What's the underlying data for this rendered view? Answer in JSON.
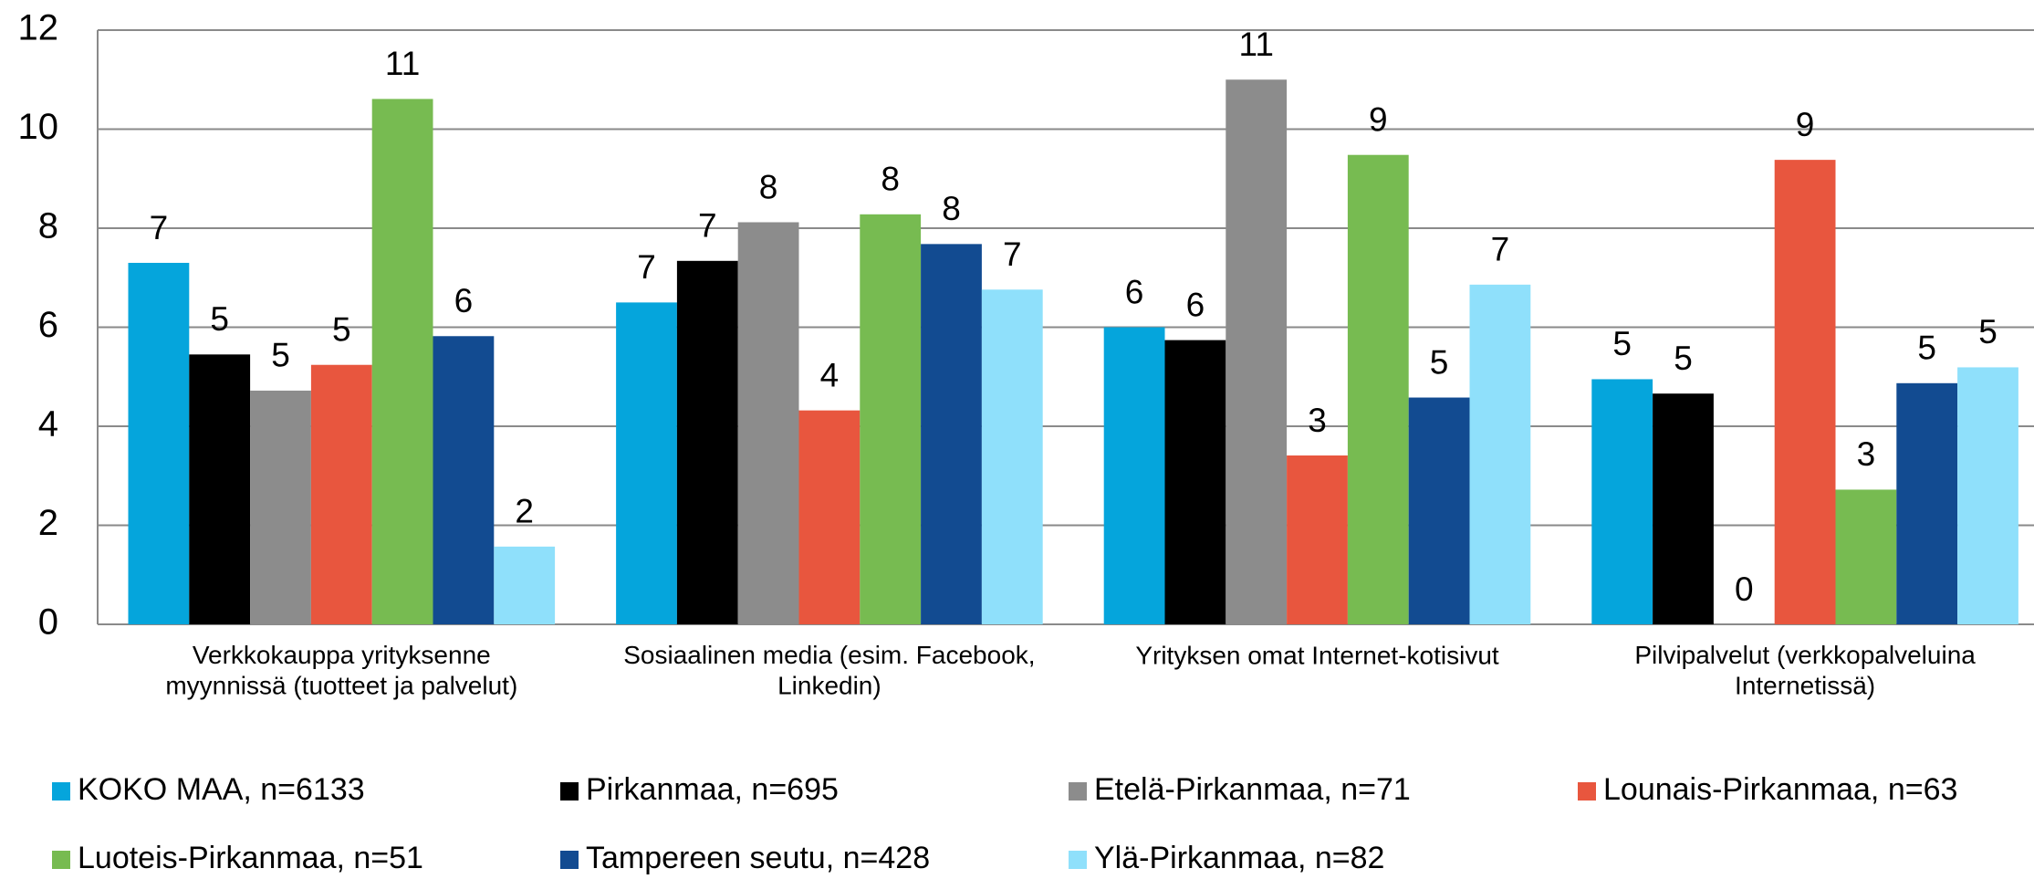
{
  "chart_data": {
    "type": "bar",
    "categories": [
      "Verkkokauppa yrityksenne\nmyynnissä (tuotteet ja palvelut)",
      "Sosiaalinen media (esim. Facebook,\nLinkedin)",
      "Yrityksen omat Internet-kotisivut",
      "Pilvipalvelut  (verkkopalveluina\nInternetissä)"
    ],
    "series": [
      {
        "name": "KOKO MAA, n=6133",
        "color": "#05a5dc",
        "values": [
          7.3,
          6.5,
          6.0,
          4.95
        ],
        "value_labels": [
          "7",
          "7",
          "6",
          "5"
        ]
      },
      {
        "name": "Pirkanmaa, n=695",
        "color": "#000000",
        "values": [
          5.45,
          7.34,
          5.74,
          4.66
        ],
        "value_labels": [
          "5",
          "7",
          "6",
          "5"
        ]
      },
      {
        "name": "Etelä-Pirkanmaa, n=71",
        "color": "#8c8c8c",
        "values": [
          4.72,
          8.12,
          11.0,
          0
        ],
        "value_labels": [
          "5",
          "8",
          "11",
          "0"
        ]
      },
      {
        "name": "Lounais-Pirkanmaa, n=63",
        "color": "#e8563e",
        "values": [
          5.24,
          4.32,
          3.41,
          9.38
        ],
        "value_labels": [
          "5",
          "4",
          "3",
          "9"
        ]
      },
      {
        "name": "Luoteis-Pirkanmaa, n=51",
        "color": "#77bb51",
        "values": [
          10.61,
          8.28,
          9.48,
          2.72
        ],
        "value_labels": [
          "11",
          "8",
          "9",
          "3"
        ]
      },
      {
        "name": "Tampereen seutu, n=428",
        "color": "#124b91",
        "values": [
          5.82,
          7.68,
          4.58,
          4.87
        ],
        "value_labels": [
          "6",
          "8",
          "5",
          "5"
        ]
      },
      {
        "name": "Ylä-Pirkanmaa, n=82",
        "color": "#8fe0fb",
        "values": [
          1.57,
          6.76,
          6.86,
          5.19
        ],
        "value_labels": [
          "2",
          "7",
          "7",
          "5"
        ]
      }
    ],
    "ylim": [
      0,
      12
    ],
    "yticks": [
      0,
      2,
      4,
      6,
      8,
      10,
      12
    ],
    "grid": true,
    "legend": "bottom"
  }
}
